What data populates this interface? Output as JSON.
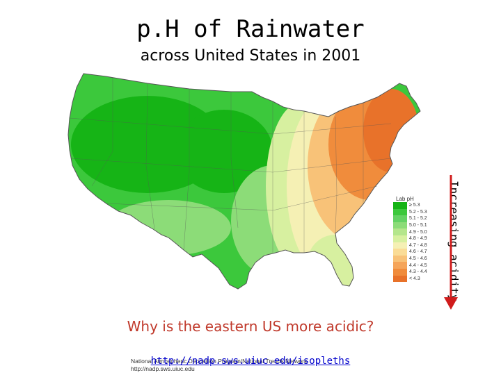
{
  "title": "p.H of Rainwater",
  "subtitle": "across United States in 2001",
  "side_label": "Increasing acidity",
  "question": "Why is the eastern US more acidic?",
  "link": "http://nadp.sws.uiuc.edu/isopleths",
  "map": {
    "credit_line1": "National Atmospheric Deposition Program/National Trends Network",
    "credit_line2": "http://nadp.sws.uiuc.edu",
    "legend_title": "Lab pH",
    "legend": [
      {
        "label": "≥ 5.3",
        "color": "#16b416"
      },
      {
        "label": "5.2 - 5.3",
        "color": "#3cc83c"
      },
      {
        "label": "5.1 - 5.2",
        "color": "#64d264"
      },
      {
        "label": "5.0 - 5.1",
        "color": "#8cdc78"
      },
      {
        "label": "4.9 - 5.0",
        "color": "#b4e68c"
      },
      {
        "label": "4.8 - 4.9",
        "color": "#d7f0a0"
      },
      {
        "label": "4.7 - 4.8",
        "color": "#f5f0b4"
      },
      {
        "label": "4.6 - 4.7",
        "color": "#fadc96"
      },
      {
        "label": "4.5 - 4.6",
        "color": "#f8c278"
      },
      {
        "label": "4.4 - 4.5",
        "color": "#f5a55a"
      },
      {
        "label": "4.3 - 4.4",
        "color": "#f08c3c"
      },
      {
        "label": "< 4.3",
        "color": "#e8722a"
      }
    ],
    "colors": {
      "west": "#3cc83c",
      "west_dark": "#16b416",
      "plains": "#8cdc78",
      "transition": "#d7f0a0",
      "yellow": "#f5f0b4",
      "east": "#f8c278",
      "east_dark": "#f08c3c",
      "core": "#e8722a",
      "state_line": "#555555",
      "arrow": "#d01c1c"
    }
  }
}
